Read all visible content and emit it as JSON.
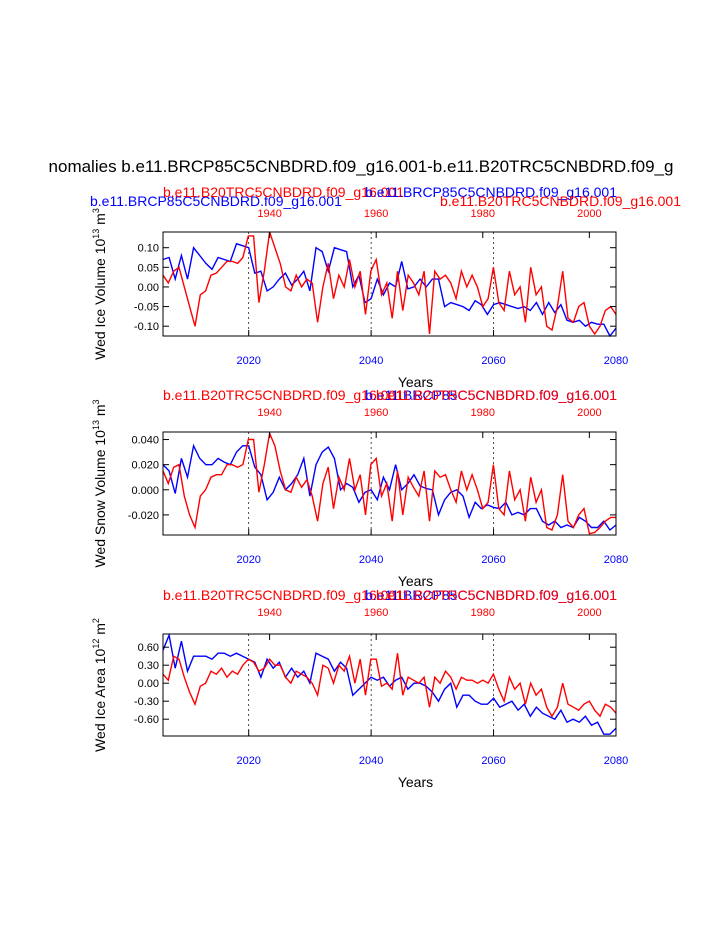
{
  "figure": {
    "main_title": "nomalies b.e11.BRCP85C5CNBDRD.f09_g16.001-b.e11.B20TRC5CNBDRD.f09_g",
    "colors": {
      "rcp_series": "#0000ff",
      "hist_series": "#ff0000",
      "axes": "#000000"
    }
  },
  "chart_data": [
    {
      "type": "line",
      "panel": "ice-volume",
      "ylabel": "Wed Ice Volume 10",
      "ylabel_exp": "13",
      "ylabel_unit": " m",
      "ylabel_unit_exp": "3",
      "xlabel": "Years",
      "left_titles": [
        "b.e11.BRCP85C5CNBDRD.f09_g16.001",
        "b.e11.B20TRC5CNBDRD.f09_g16.001"
      ],
      "right_titles": [
        "b.e11.BRCP85C5CNBDRD.f09_g16.001",
        "b.e11.B20TRC5CNBDRD.f09_g16.001"
      ],
      "ylim": [
        -0.125,
        0.14
      ],
      "yticks": [
        -0.1,
        -0.05,
        0.0,
        0.05,
        0.1
      ],
      "ytick_labels": [
        "-0.10",
        "-0.05",
        "0.00",
        "0.05",
        "0.10"
      ],
      "bottom_axis": {
        "range": [
          2006,
          2080
        ],
        "ticks": [
          2020,
          2040,
          2060,
          2080
        ],
        "labels": [
          "2020",
          "2040",
          "2060",
          "2080"
        ]
      },
      "top_axis": {
        "range": [
          1920,
          2005
        ],
        "ticks": [
          1940,
          1960,
          1980,
          2000
        ],
        "labels": [
          "1940",
          "1960",
          "1980",
          "2000"
        ]
      },
      "series": [
        {
          "name": "b.e11.BRCP85C5CNBDRD.f09_g16.001",
          "color": "#0000ff",
          "axis": "bottom",
          "start": 2006,
          "values": [
            0.07,
            0.075,
            0.02,
            0.08,
            0.02,
            0.1,
            0.08,
            0.06,
            0.045,
            0.075,
            0.07,
            0.065,
            0.11,
            0.105,
            0.1,
            0.035,
            0.04,
            -0.01,
            0.0,
            0.02,
            0.035,
            0.005,
            0.02,
            0.04,
            -0.01,
            0.1,
            0.09,
            0.04,
            0.1,
            0.095,
            0.09,
            0.0,
            0.03,
            -0.04,
            -0.03,
            0.02,
            -0.02,
            0.01,
            0.0,
            0.065,
            -0.005,
            0.0,
            0.02,
            0.0,
            0.02,
            0.02,
            -0.05,
            -0.04,
            -0.045,
            -0.05,
            -0.06,
            -0.035,
            -0.045,
            -0.07,
            -0.045,
            -0.04,
            -0.045,
            -0.05,
            -0.055,
            -0.05,
            -0.06,
            -0.04,
            -0.07,
            -0.04,
            -0.065,
            -0.045,
            -0.085,
            -0.09,
            -0.085,
            -0.1,
            -0.09,
            -0.095,
            -0.095,
            -0.125,
            -0.105
          ]
        },
        {
          "name": "b.e11.B20TRC5CNBDRD.f09_g16.001",
          "color": "#ff0000",
          "axis": "top",
          "start": 1920,
          "values": [
            0.03,
            0.01,
            0.04,
            0.05,
            0.0,
            -0.05,
            -0.1,
            -0.02,
            -0.01,
            0.03,
            0.035,
            0.05,
            0.065,
            0.065,
            0.06,
            0.075,
            0.13,
            0.13,
            -0.04,
            0.04,
            0.14,
            0.1,
            0.06,
            0.0,
            -0.01,
            0.03,
            0.0,
            0.02,
            0.01,
            -0.09,
            0.0,
            0.06,
            -0.03,
            0.03,
            0.0,
            0.07,
            0.0,
            0.04,
            -0.07,
            0.04,
            0.07,
            -0.02,
            0.01,
            -0.08,
            0.04,
            -0.06,
            0.03,
            0.01,
            -0.02,
            0.04,
            -0.12,
            0.04,
            0.02,
            0.03,
            0.01,
            -0.03,
            0.04,
            0.0,
            0.03,
            0.0,
            -0.05,
            -0.03,
            0.05,
            -0.04,
            -0.06,
            0.04,
            -0.02,
            0.0,
            -0.09,
            0.05,
            -0.02,
            0.0,
            -0.1,
            -0.11,
            -0.05,
            0.04,
            -0.08,
            -0.09,
            -0.05,
            -0.04,
            -0.1,
            -0.12,
            -0.1,
            -0.06,
            -0.05,
            -0.07
          ]
        }
      ]
    },
    {
      "type": "line",
      "panel": "snow-volume",
      "ylabel": "Wed Snow Volume 10",
      "ylabel_exp": "13",
      "ylabel_unit": " m",
      "ylabel_unit_exp": "3",
      "xlabel": "Years",
      "left_titles": [
        "b.e11.B20TRC5CNBDRD.f09_g16.001"
      ],
      "right_titles": [
        "b.e11.BRCP85C5CNBDRD.f09_g16.001",
        "b.e11.B20TRC5CNBDRD.f09_g16.001"
      ],
      "ylim": [
        -0.036,
        0.046
      ],
      "yticks": [
        -0.02,
        0.0,
        0.02,
        0.04
      ],
      "ytick_labels": [
        "-0.020",
        "0.000",
        "0.020",
        "0.040"
      ],
      "bottom_axis": {
        "range": [
          2006,
          2080
        ],
        "ticks": [
          2020,
          2040,
          2060,
          2080
        ],
        "labels": [
          "2020",
          "2040",
          "2060",
          "2080"
        ]
      },
      "top_axis": {
        "range": [
          1920,
          2005
        ],
        "ticks": [
          1940,
          1960,
          1980,
          2000
        ],
        "labels": [
          "1940",
          "1960",
          "1980",
          "2000"
        ]
      },
      "series": [
        {
          "name": "b.e11.BRCP85C5CNBDRD.f09_g16.001",
          "color": "#0000ff",
          "axis": "bottom",
          "start": 2006,
          "values": [
            0.02,
            0.015,
            -0.003,
            0.025,
            0.01,
            0.035,
            0.025,
            0.02,
            0.02,
            0.025,
            0.022,
            0.02,
            0.03,
            0.035,
            0.035,
            0.018,
            0.012,
            -0.008,
            -0.002,
            0.01,
            0.0,
            0.005,
            0.012,
            0.025,
            -0.005,
            0.02,
            0.03,
            0.034,
            0.025,
            0.0,
            0.005,
            0.002,
            -0.01,
            -0.002,
            0.0,
            -0.008,
            0.01,
            0.0,
            0.02,
            0.0,
            0.005,
            0.012,
            0.003,
            0.001,
            0.0,
            -0.02,
            -0.008,
            -0.002,
            0.0,
            -0.005,
            -0.022,
            -0.01,
            -0.015,
            -0.012,
            -0.014,
            -0.015,
            -0.01,
            -0.02,
            -0.018,
            -0.02,
            -0.015,
            -0.015,
            -0.025,
            -0.028,
            -0.025,
            -0.03,
            -0.028,
            -0.03,
            -0.022,
            -0.025,
            -0.03,
            -0.03,
            -0.025,
            -0.032,
            -0.028
          ]
        },
        {
          "name": "b.e11.B20TRC5CNBDRD.f09_g16.001",
          "color": "#ff0000",
          "axis": "top",
          "start": 1920,
          "values": [
            0.015,
            0.005,
            0.018,
            0.02,
            -0.005,
            -0.02,
            -0.03,
            -0.005,
            0.0,
            0.01,
            0.012,
            0.012,
            0.02,
            0.02,
            0.018,
            0.02,
            0.04,
            0.04,
            -0.002,
            0.02,
            0.045,
            0.035,
            0.015,
            0.0,
            -0.002,
            0.01,
            0.002,
            0.008,
            -0.005,
            -0.025,
            0.005,
            0.018,
            -0.015,
            0.01,
            0.0,
            0.025,
            0.0,
            0.012,
            -0.02,
            0.02,
            0.025,
            -0.005,
            0.005,
            -0.025,
            0.015,
            -0.02,
            0.01,
            0.002,
            -0.005,
            0.015,
            -0.025,
            0.015,
            0.01,
            0.012,
            0.0,
            -0.01,
            0.015,
            0.0,
            0.012,
            0.0,
            -0.015,
            -0.01,
            0.02,
            -0.015,
            -0.02,
            0.015,
            -0.008,
            0.0,
            -0.025,
            0.01,
            -0.01,
            0.0,
            -0.03,
            -0.032,
            -0.02,
            0.012,
            -0.025,
            -0.03,
            -0.02,
            -0.015,
            -0.035,
            -0.034,
            -0.03,
            -0.025,
            -0.022,
            -0.022
          ]
        }
      ]
    },
    {
      "type": "line",
      "panel": "ice-area",
      "ylabel": "Wed Ice Area 10",
      "ylabel_exp": "12",
      "ylabel_unit": " m",
      "ylabel_unit_exp": "2",
      "xlabel": "Years",
      "left_titles": [
        "b.e11.B20TRC5CNBDRD.f09_g16.001"
      ],
      "right_titles": [
        "b.e11.BRCP85C5CNBDRD.f09_g16.001",
        "b.e11.B20TRC5CNBDRD.f09_g16.001"
      ],
      "ylim": [
        -0.88,
        0.82
      ],
      "yticks": [
        -0.6,
        -0.3,
        0.0,
        0.3,
        0.6
      ],
      "ytick_labels": [
        "-0.60",
        "-0.30",
        "0.00",
        "0.30",
        "0.60"
      ],
      "bottom_axis": {
        "range": [
          2006,
          2080
        ],
        "ticks": [
          2020,
          2040,
          2060,
          2080
        ],
        "labels": [
          "2020",
          "2040",
          "2060",
          "2080"
        ]
      },
      "top_axis": {
        "range": [
          1920,
          2005
        ],
        "ticks": [
          1940,
          1960,
          1980,
          2000
        ],
        "labels": [
          "1940",
          "1960",
          "1980",
          "2000"
        ]
      },
      "series": [
        {
          "name": "b.e11.BRCP85C5CNBDRD.f09_g16.001",
          "color": "#0000ff",
          "axis": "bottom",
          "start": 2006,
          "values": [
            0.55,
            0.8,
            0.25,
            0.7,
            0.2,
            0.45,
            0.45,
            0.45,
            0.4,
            0.5,
            0.5,
            0.45,
            0.5,
            0.45,
            0.4,
            0.35,
            0.1,
            0.4,
            0.25,
            0.35,
            0.1,
            0.25,
            0.1,
            0.2,
            0.0,
            0.5,
            0.45,
            0.4,
            0.2,
            0.35,
            0.25,
            -0.2,
            -0.1,
            0.0,
            0.1,
            0.05,
            0.1,
            -0.05,
            0.05,
            0.1,
            -0.1,
            0.0,
            0.0,
            -0.05,
            -0.15,
            -0.3,
            -0.1,
            0.0,
            -0.4,
            -0.2,
            -0.2,
            -0.3,
            -0.35,
            -0.35,
            -0.25,
            -0.4,
            -0.35,
            -0.3,
            -0.45,
            -0.35,
            -0.55,
            -0.4,
            -0.5,
            -0.55,
            -0.6,
            -0.45,
            -0.65,
            -0.6,
            -0.65,
            -0.55,
            -0.7,
            -0.65,
            -0.85,
            -0.85,
            -0.75
          ]
        },
        {
          "name": "b.e11.B20TRC5CNBDRD.f09_g16.001",
          "color": "#ff0000",
          "axis": "top",
          "start": 1920,
          "values": [
            0.15,
            0.05,
            0.45,
            0.4,
            0.1,
            -0.15,
            -0.35,
            -0.05,
            0.0,
            0.2,
            0.15,
            0.25,
            0.1,
            0.2,
            0.15,
            0.3,
            0.4,
            0.35,
            0.2,
            0.25,
            0.4,
            0.3,
            0.3,
            0.1,
            0.0,
            0.2,
            0.15,
            0.1,
            0.0,
            -0.2,
            0.3,
            0.25,
            0.0,
            0.3,
            0.2,
            0.45,
            0.0,
            0.4,
            -0.2,
            0.4,
            0.4,
            -0.05,
            0.0,
            -0.1,
            0.5,
            -0.2,
            0.1,
            0.05,
            0.0,
            0.1,
            -0.4,
            0.1,
            0.0,
            0.2,
            0.1,
            -0.1,
            0.1,
            0.05,
            0.05,
            0.0,
            0.05,
            0.0,
            0.15,
            -0.1,
            -0.3,
            0.1,
            -0.1,
            0.0,
            -0.35,
            0.0,
            -0.2,
            -0.1,
            -0.4,
            -0.55,
            -0.4,
            0.0,
            -0.35,
            -0.4,
            -0.45,
            -0.35,
            -0.3,
            -0.45,
            -0.55,
            -0.35,
            -0.4,
            -0.5
          ]
        }
      ]
    }
  ]
}
